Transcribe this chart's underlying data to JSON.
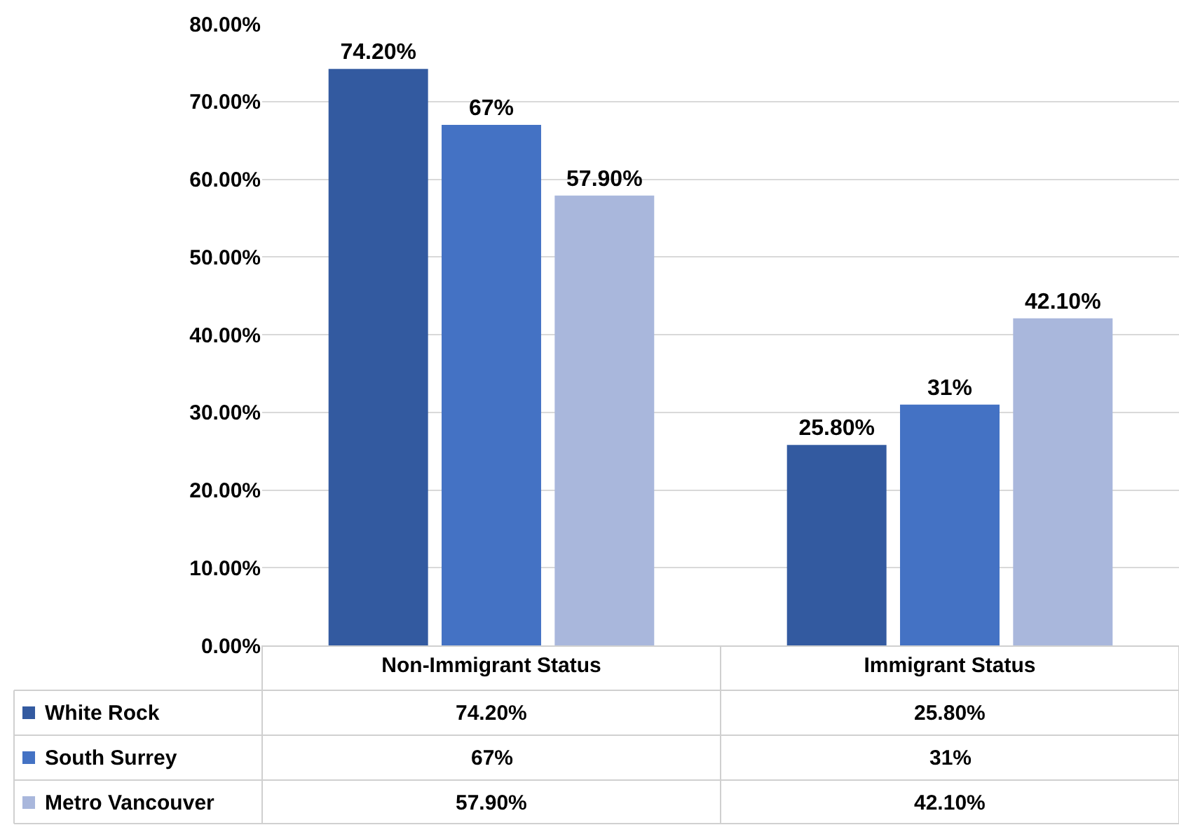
{
  "chart_data": {
    "type": "bar",
    "categories": [
      "Non-Immigrant Status",
      "Immigrant Status"
    ],
    "series": [
      {
        "name": "White Rock",
        "color": "#335aa0",
        "values": [
          74.2,
          25.8
        ],
        "value_labels": [
          "74.20%",
          "25.80%"
        ]
      },
      {
        "name": "South Surrey",
        "color": "#4472c4",
        "values": [
          67,
          31
        ],
        "value_labels": [
          "67%",
          "31%"
        ]
      },
      {
        "name": "Metro Vancouver",
        "color": "#a9b7dc",
        "values": [
          57.9,
          42.1
        ],
        "value_labels": [
          "57.90%",
          "42.10%"
        ]
      }
    ],
    "ylim": [
      0,
      80
    ],
    "yticks": [
      {
        "value": 0,
        "label": "0.00%"
      },
      {
        "value": 10,
        "label": "10.00%"
      },
      {
        "value": 20,
        "label": "20.00%"
      },
      {
        "value": 30,
        "label": "30.00%"
      },
      {
        "value": 40,
        "label": "40.00%"
      },
      {
        "value": 50,
        "label": "50.00%"
      },
      {
        "value": 60,
        "label": "60.00%"
      },
      {
        "value": 70,
        "label": "70.00%"
      },
      {
        "value": 80,
        "label": "80.00%"
      }
    ],
    "grid": "y",
    "legend": "bottom left"
  }
}
